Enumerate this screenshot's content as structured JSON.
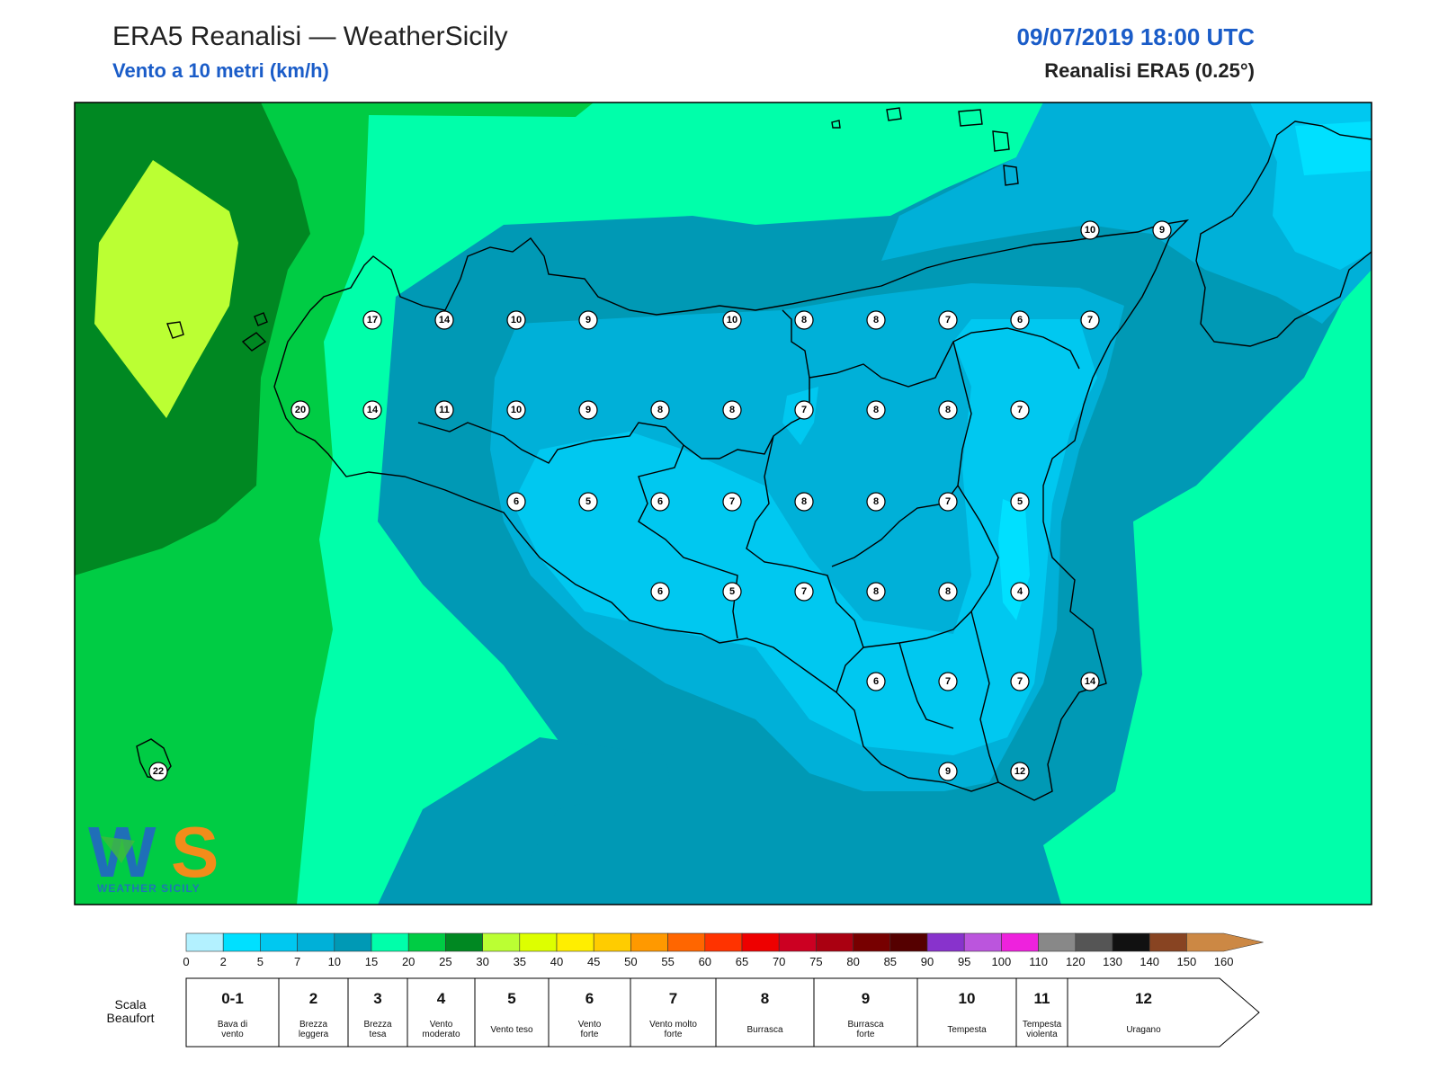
{
  "header": {
    "title": "ERA5 Reanalisi — WeatherSicily",
    "subtitle": "Vento a 10 metri (km/h)",
    "datetime": "09/07/2019 18:00 UTC",
    "dataset": "Reanalisi ERA5 (0.25°)"
  },
  "logo": {
    "text": "WEATHER SICILY",
    "colors": {
      "blue": "#1f6fb8",
      "green": "#3dbb3d",
      "orange": "#f28c1a"
    }
  },
  "stations": [
    {
      "v": "10"
    },
    {
      "v": "9"
    },
    {
      "v": "17"
    },
    {
      "v": "14"
    },
    {
      "v": "10"
    },
    {
      "v": "9"
    },
    {
      "v": "10"
    },
    {
      "v": "8"
    },
    {
      "v": "8"
    },
    {
      "v": "7"
    },
    {
      "v": "6"
    },
    {
      "v": "7"
    },
    {
      "v": "20"
    },
    {
      "v": "14"
    },
    {
      "v": "11"
    },
    {
      "v": "10"
    },
    {
      "v": "9"
    },
    {
      "v": "8"
    },
    {
      "v": "8"
    },
    {
      "v": "7"
    },
    {
      "v": "8"
    },
    {
      "v": "8"
    },
    {
      "v": "7"
    },
    {
      "v": "6"
    },
    {
      "v": "5"
    },
    {
      "v": "6"
    },
    {
      "v": "7"
    },
    {
      "v": "8"
    },
    {
      "v": "8"
    },
    {
      "v": "7"
    },
    {
      "v": "5"
    },
    {
      "v": "6"
    },
    {
      "v": "5"
    },
    {
      "v": "7"
    },
    {
      "v": "8"
    },
    {
      "v": "8"
    },
    {
      "v": "4"
    },
    {
      "v": "6"
    },
    {
      "v": "7"
    },
    {
      "v": "7"
    },
    {
      "v": "14"
    },
    {
      "v": "9"
    },
    {
      "v": "12"
    },
    {
      "v": "22"
    }
  ],
  "colorbar": {
    "ticks": [
      "0",
      "2",
      "5",
      "7",
      "10",
      "15",
      "20",
      "25",
      "30",
      "35",
      "40",
      "45",
      "50",
      "55",
      "60",
      "65",
      "70",
      "75",
      "80",
      "85",
      "90",
      "95",
      "100",
      "110",
      "120",
      "130",
      "140",
      "150",
      "160"
    ],
    "colors": [
      "#b3f1ff",
      "#00e0ff",
      "#00c8f0",
      "#00b0d8",
      "#0099b5",
      "#00ffaa",
      "#00cc44",
      "#008822",
      "#bbff33",
      "#ddff00",
      "#ffee00",
      "#ffcc00",
      "#ff9900",
      "#ff6600",
      "#ff3300",
      "#ee0000",
      "#cc0022",
      "#aa0011",
      "#770000",
      "#550000",
      "#8833cc",
      "#bb55dd",
      "#ee22dd",
      "#888888",
      "#555555",
      "#111111",
      "#884422",
      "#cc8844"
    ]
  },
  "beaufort": {
    "title_line1": "Scala",
    "title_line2": "Beaufort",
    "classes": [
      {
        "num": "0-1",
        "l1": "Bava di",
        "l2": "vento"
      },
      {
        "num": "2",
        "l1": "Brezza",
        "l2": "leggera"
      },
      {
        "num": "3",
        "l1": "Brezza",
        "l2": "tesa"
      },
      {
        "num": "4",
        "l1": "Vento",
        "l2": "moderato"
      },
      {
        "num": "5",
        "l1": "Vento teso",
        "l2": ""
      },
      {
        "num": "6",
        "l1": "Vento",
        "l2": "forte"
      },
      {
        "num": "7",
        "l1": "Vento molto",
        "l2": "forte"
      },
      {
        "num": "8",
        "l1": "Burrasca",
        "l2": ""
      },
      {
        "num": "9",
        "l1": "Burrasca",
        "l2": "forte"
      },
      {
        "num": "10",
        "l1": "Tempesta",
        "l2": ""
      },
      {
        "num": "11",
        "l1": "Tempesta",
        "l2": "violenta"
      },
      {
        "num": "12",
        "l1": "Uragano",
        "l2": ""
      }
    ]
  }
}
